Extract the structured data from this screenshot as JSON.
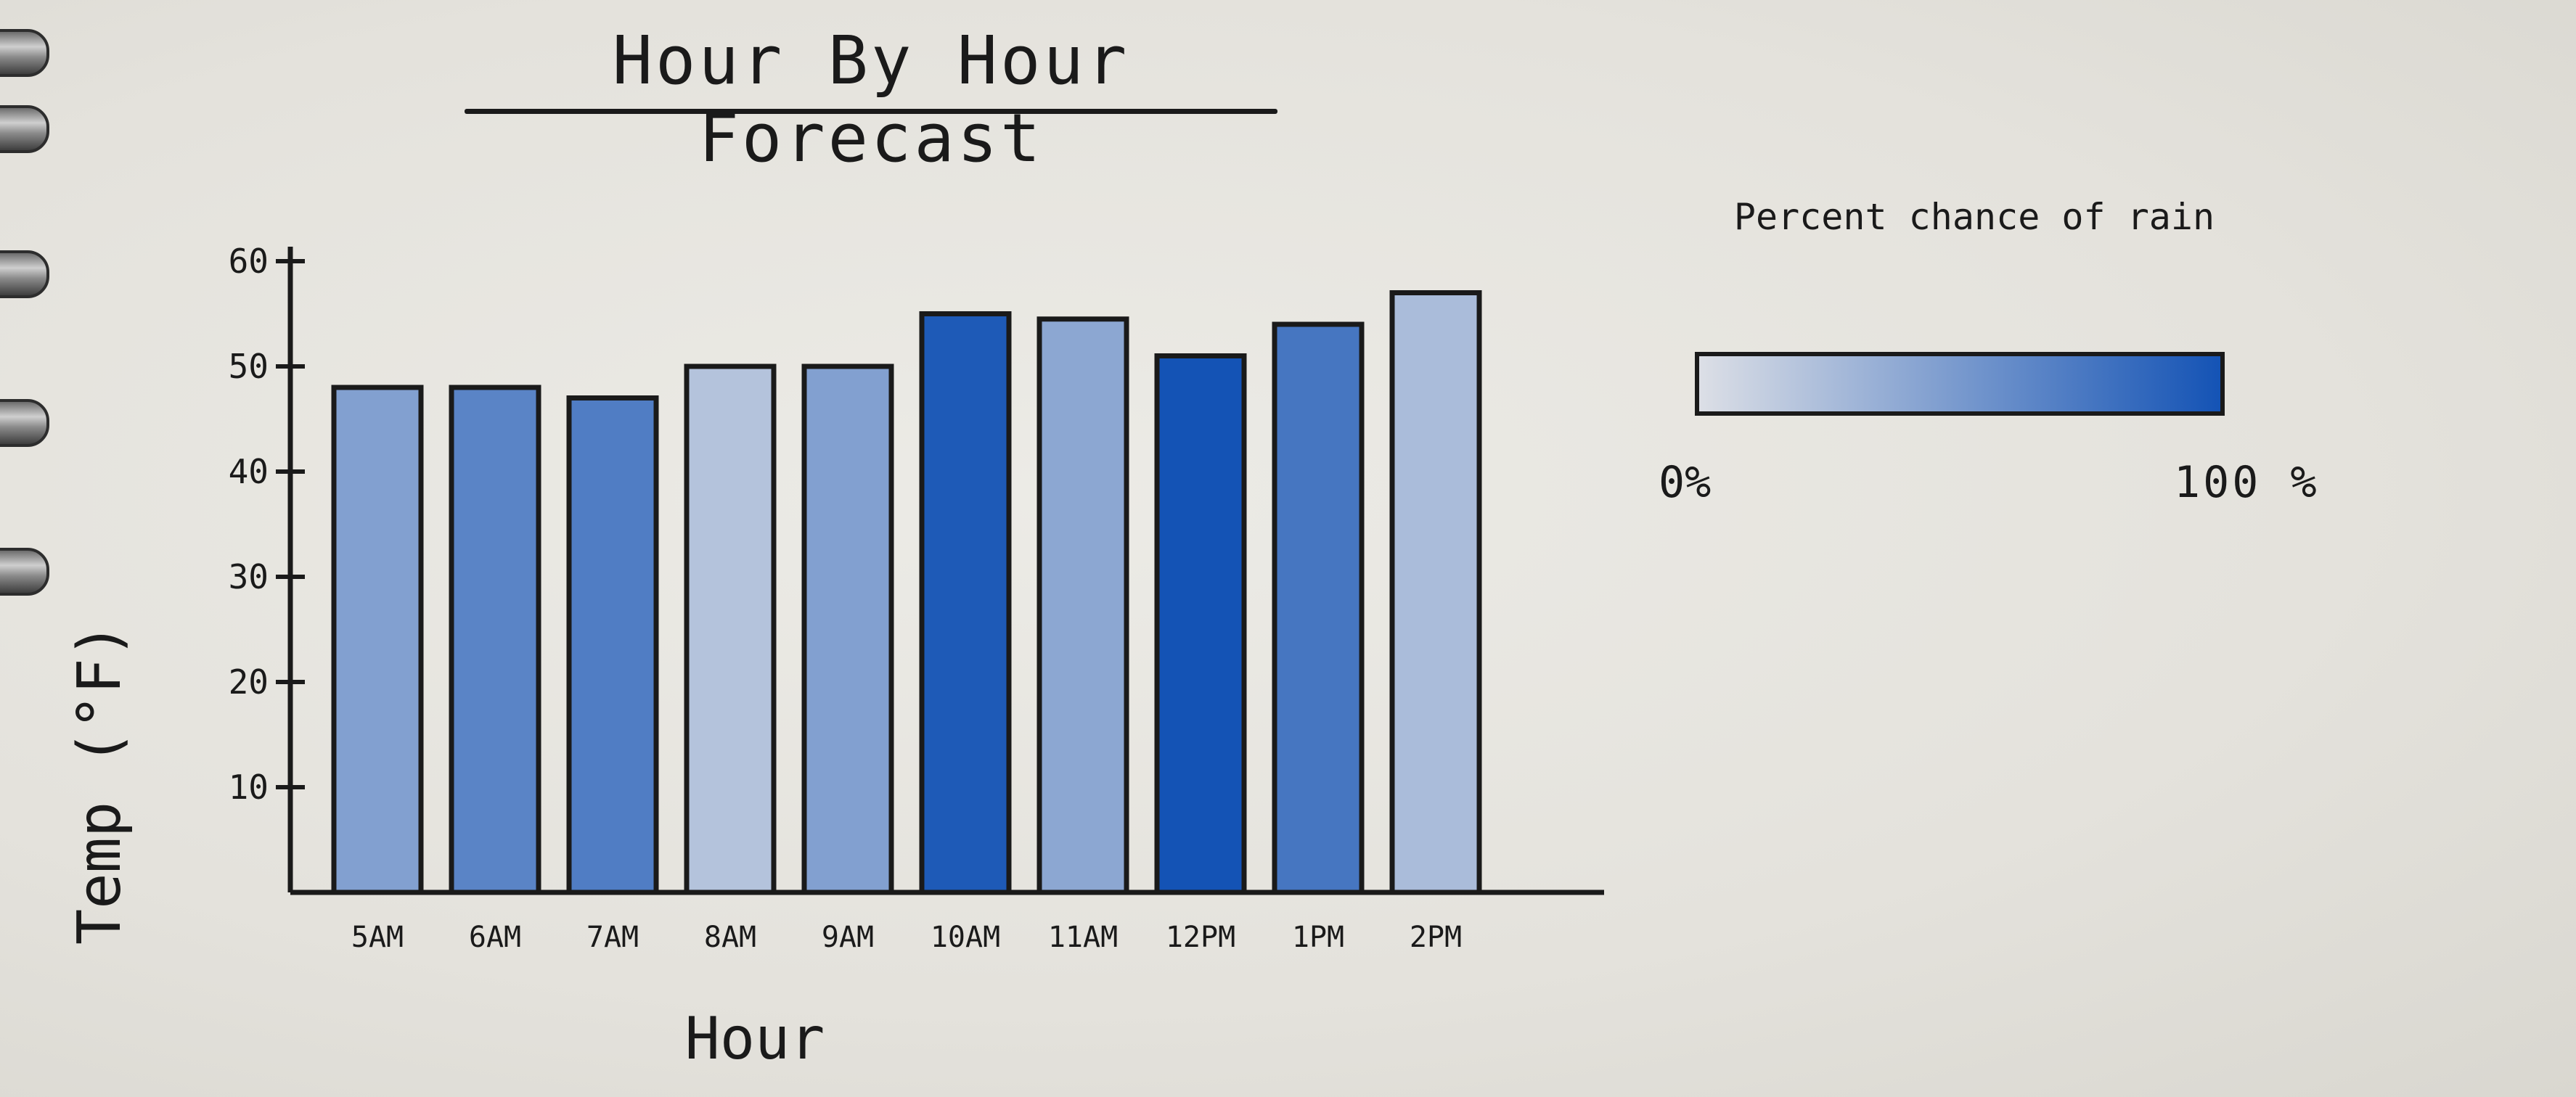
{
  "chart_data": {
    "type": "bar",
    "title": "Hour By Hour Forecast",
    "xlabel": "Hour",
    "ylabel": "Temp (°F)",
    "ylim": [
      0,
      60
    ],
    "yticks": [
      10,
      20,
      30,
      40,
      50,
      60
    ],
    "categories": [
      "5AM",
      "6AM",
      "7AM",
      "8AM",
      "9AM",
      "10AM",
      "11AM",
      "12PM",
      "1PM",
      "2PM"
    ],
    "values": [
      48,
      48,
      47,
      50,
      50,
      55,
      54.5,
      51,
      54,
      57
    ],
    "rain_chance_pct": [
      45,
      65,
      70,
      20,
      45,
      95,
      40,
      100,
      75,
      25
    ],
    "legend": {
      "title": "Percent chance of rain",
      "min_label": "0%",
      "max_label": "100 %",
      "color_low": "#dcdfe6",
      "color_high": "#1453b5"
    },
    "grid": false
  }
}
